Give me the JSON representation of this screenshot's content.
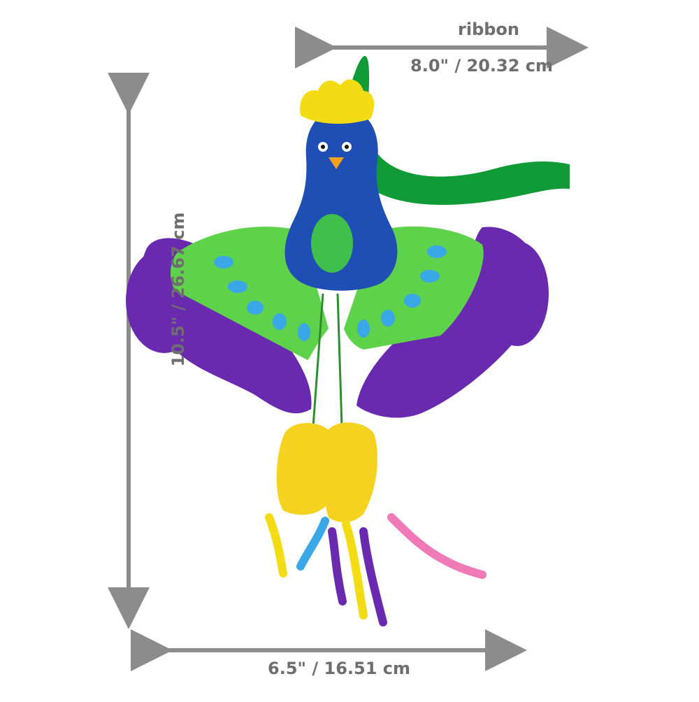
{
  "dimensions": {
    "ribbon": {
      "label": "ribbon",
      "value": "8.0\" / 20.32 cm"
    },
    "height": {
      "value": "10.5\" / 26.67 cm"
    },
    "width": {
      "value": "6.5\" / 16.51 cm"
    }
  },
  "product": {
    "subject": "peacock toy with ribbon, feathers and curly streamers",
    "colors": {
      "body_blue": "#1f4fb5",
      "head_crest": "#f4dc14",
      "ribbon_green": "#119b36",
      "wing_green": "#5dd24a",
      "feather_purple": "#6a2ab0",
      "feet_yellow": "#f4d21f",
      "streamer_pink": "#f07ab8",
      "streamer_blue": "#3aa7e6",
      "arrow_gray": "#8c8c8c"
    }
  }
}
